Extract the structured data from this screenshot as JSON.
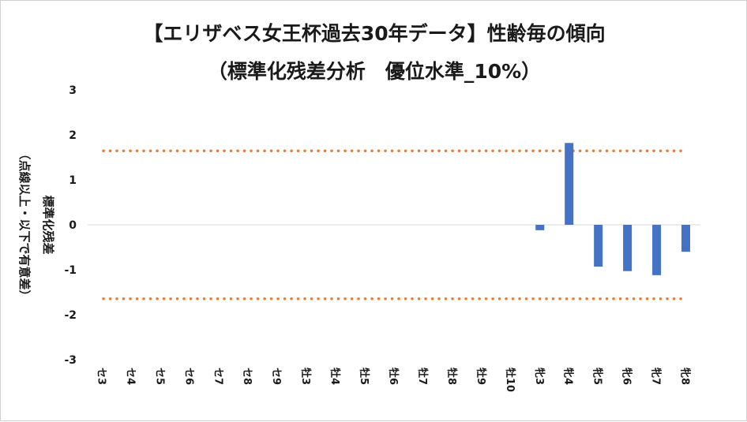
{
  "chart_data": {
    "type": "bar",
    "title": "【エリザベス女王杯過去30年データ】性齢毎の傾向",
    "subtitle": "（標準化残差分析　優位水準_10%）",
    "ylabel": "標準化残差",
    "ylabel2": "（点線以上・以下で有意差）",
    "ylim": [
      -3,
      3
    ],
    "yticks": [
      "3",
      "2",
      "1",
      "0",
      "-1",
      "-2",
      "-3"
    ],
    "categories": [
      "セ3",
      "セ4",
      "セ5",
      "セ6",
      "セ7",
      "セ8",
      "セ9",
      "牡3",
      "牡4",
      "牡5",
      "牡6",
      "牡7",
      "牡8",
      "牡9",
      "牡10",
      "牝3",
      "牝4",
      "牝5",
      "牝6",
      "牝7",
      "牝8"
    ],
    "values": [
      null,
      null,
      null,
      null,
      null,
      null,
      null,
      null,
      null,
      null,
      null,
      null,
      null,
      null,
      null,
      -0.12,
      1.82,
      -0.93,
      -1.03,
      -1.12,
      -0.6
    ],
    "thresholds": [
      1.645,
      -1.645
    ],
    "grid": false,
    "legend": "none",
    "colors": {
      "bar": "#4472c4",
      "threshold": "#ed7d31",
      "axis": "#d9d9d9",
      "text": "#1a1a1a"
    }
  }
}
